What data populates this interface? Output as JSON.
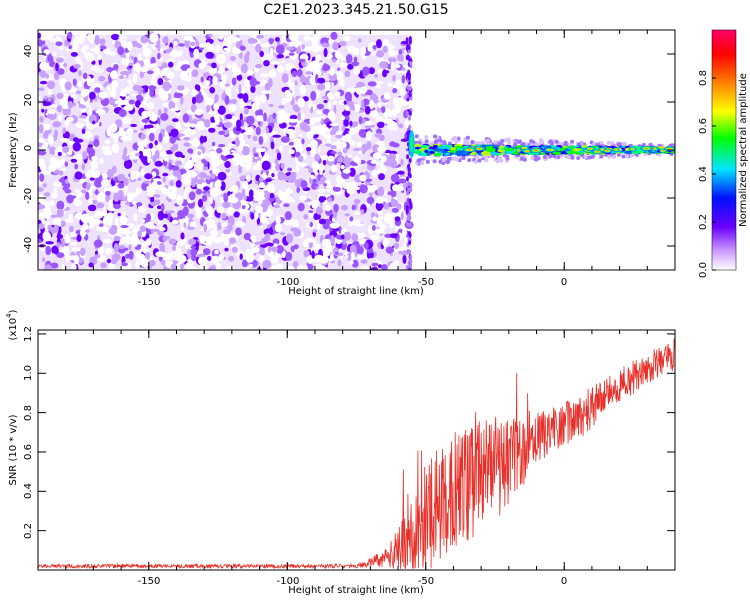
{
  "title": "C2E1.2023.345.21.50.G15",
  "colors": {
    "snr_line": "#e8302a",
    "dense_noise": "#6a00ff",
    "light_noise": "#d9b8ff",
    "frame": "#000000"
  },
  "chart_data": [
    {
      "type": "heatmap",
      "title": "C2E1.2023.345.21.50.G15",
      "xlabel": "Height of straight line (km)",
      "ylabel": "Frequency (Hz)",
      "xlim": [
        -190,
        40
      ],
      "ylim": [
        -50,
        50
      ],
      "x_ticks": [
        "-150",
        "-100",
        "-50",
        "0"
      ],
      "y_ticks": [
        "-40",
        "-20",
        "0",
        "20",
        "40"
      ],
      "regions": [
        {
          "name": "noise",
          "x": [
            -190,
            -56
          ],
          "y": [
            -50,
            48
          ],
          "amplitude": [
            0.05,
            0.3
          ]
        },
        {
          "name": "signal",
          "x": [
            -54,
            40
          ],
          "y_center": 0,
          "y_halfwidth": [
            6,
            2
          ],
          "amplitude": [
            0.3,
            1.0
          ]
        }
      ],
      "colorbar": {
        "label": "Normalized spectral amplitude",
        "ticks": [
          "0.0",
          "0.2",
          "0.4",
          "0.6",
          "0.8"
        ],
        "range": [
          0,
          1
        ],
        "colors": [
          "#ffffff",
          "#cc99ff",
          "#6a00ff",
          "#0010ff",
          "#00e5ff",
          "#00ff00",
          "#ffff00",
          "#ff8000",
          "#ff0000",
          "#ff0066"
        ]
      }
    },
    {
      "type": "line",
      "xlabel": "Height of straight line (km)",
      "ylabel": "SNR (10 * v/v)",
      "y_multiplier": "(x10",
      "y_multiplier_exp": "4",
      "y_multiplier_close": ")",
      "xlim": [
        -190,
        40
      ],
      "ylim": [
        0,
        1.22
      ],
      "x_ticks": [
        "-150",
        "-100",
        "-50",
        "0"
      ],
      "y_ticks": [
        "0.2",
        "0.4",
        "0.6",
        "0.8",
        "1.0",
        "1.2"
      ],
      "series": [
        {
          "x": [
            -190,
            -170,
            -150,
            -130,
            -110,
            -90,
            -80,
            -75,
            -72,
            -70,
            -68,
            -65,
            -62,
            -60,
            -58,
            -55,
            -52,
            -50,
            -48,
            -45,
            -42,
            -40,
            -38,
            -35,
            -32,
            -30,
            -28,
            -25,
            -22,
            -20,
            -18,
            -15,
            -12,
            -10,
            -8,
            -5,
            -2,
            0,
            2,
            5,
            8,
            10,
            12,
            15,
            18,
            20,
            22,
            25,
            28,
            30,
            32,
            35,
            38,
            40
          ],
          "y": [
            0.02,
            0.02,
            0.02,
            0.02,
            0.02,
            0.02,
            0.02,
            0.02,
            0.03,
            0.04,
            0.05,
            0.06,
            0.08,
            0.1,
            0.13,
            0.17,
            0.22,
            0.26,
            0.3,
            0.34,
            0.37,
            0.4,
            0.42,
            0.44,
            0.45,
            0.47,
            0.5,
            0.52,
            0.53,
            0.55,
            0.57,
            0.6,
            0.63,
            0.66,
            0.68,
            0.7,
            0.72,
            0.74,
            0.76,
            0.78,
            0.8,
            0.83,
            0.86,
            0.88,
            0.91,
            0.94,
            0.96,
            0.98,
            1.0,
            1.02,
            1.04,
            1.06,
            1.08,
            1.1
          ],
          "noise_amplitude": [
            0.01,
            0.01,
            0.01,
            0.01,
            0.01,
            0.01,
            0.01,
            0.01,
            0.02,
            0.02,
            0.03,
            0.05,
            0.08,
            0.12,
            0.16,
            0.22,
            0.26,
            0.28,
            0.3,
            0.3,
            0.3,
            0.3,
            0.3,
            0.3,
            0.3,
            0.3,
            0.28,
            0.26,
            0.24,
            0.22,
            0.2,
            0.18,
            0.16,
            0.14,
            0.13,
            0.12,
            0.12,
            0.12,
            0.12,
            0.12,
            0.12,
            0.11,
            0.1,
            0.1,
            0.1,
            0.1,
            0.09,
            0.09,
            0.08,
            0.08,
            0.08,
            0.08,
            0.08,
            0.08
          ]
        }
      ]
    }
  ]
}
